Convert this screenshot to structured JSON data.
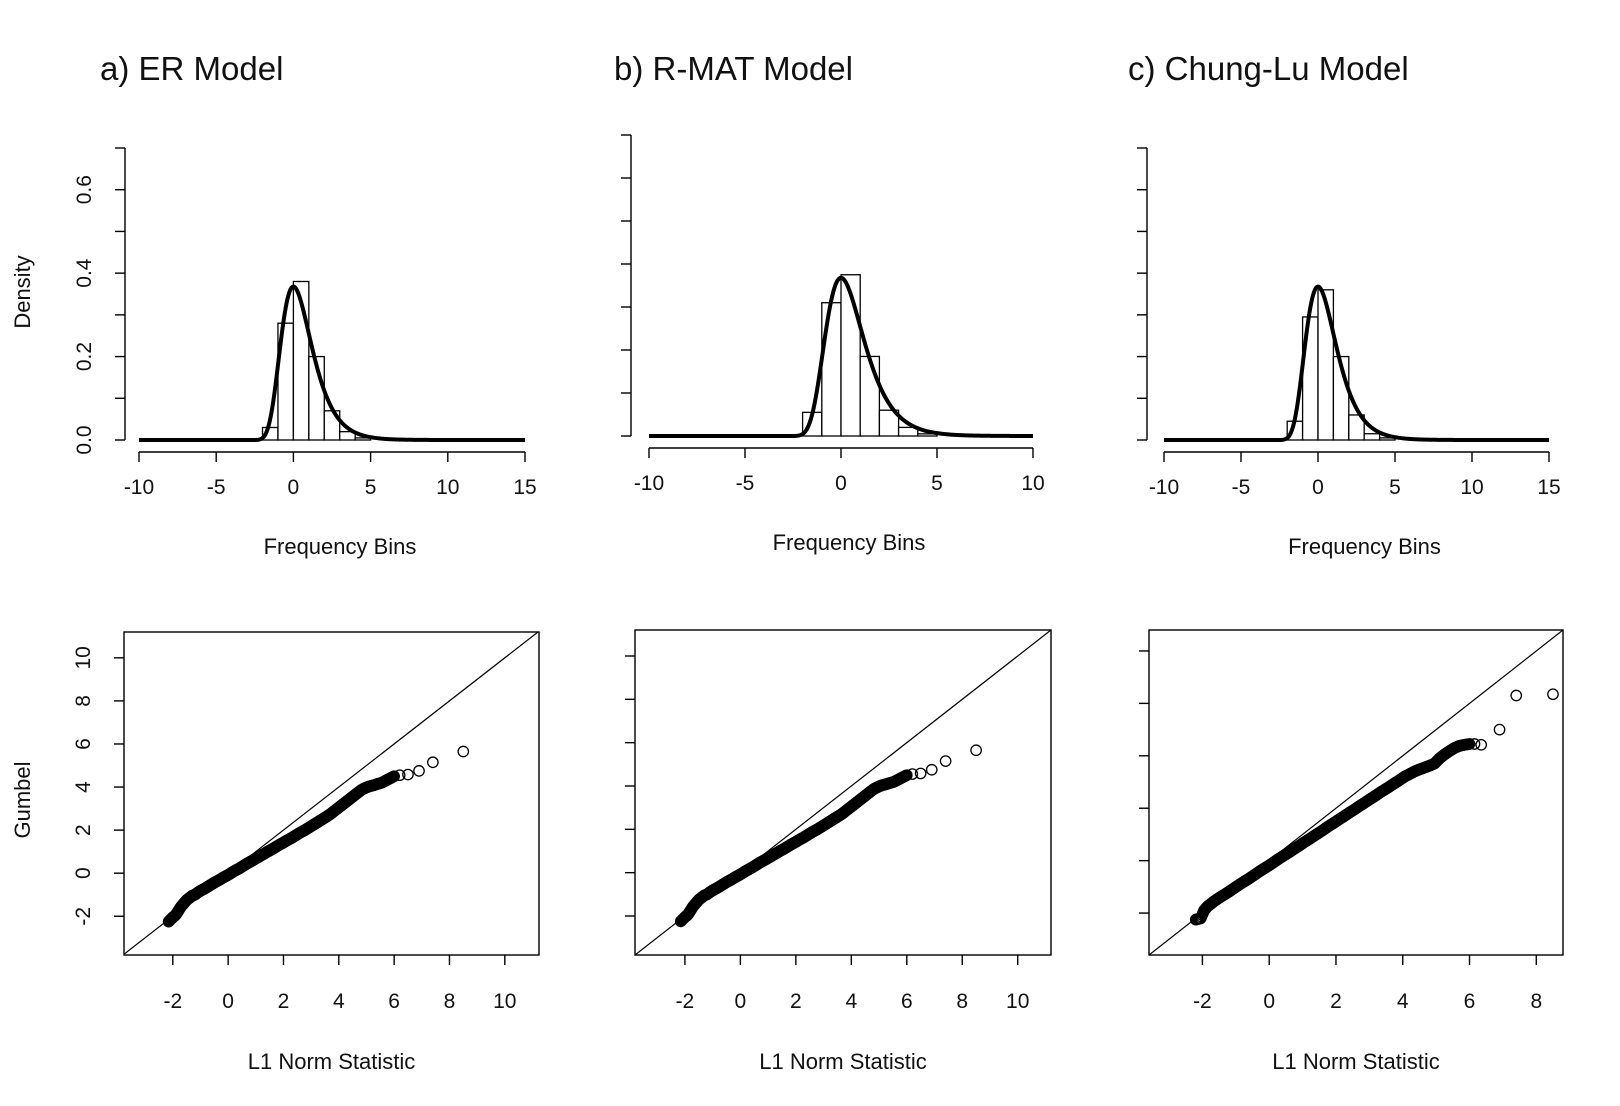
{
  "figure": {
    "density_ylabel": "Density",
    "gumbel_ylabel": "Gumbel"
  },
  "chart_data": [
    {
      "id": "hist-er",
      "type": "bar",
      "panel_title": "a)  ER Model",
      "xlabel": "Frequency Bins",
      "ylabel": "Density",
      "xlim": [
        -10,
        15
      ],
      "ylim": [
        0,
        0.7
      ],
      "x_ticks": [
        -10,
        -5,
        0,
        5,
        10,
        15
      ],
      "y_ticks": [
        0.0,
        0.2,
        0.4,
        0.6
      ],
      "y_tick_labels": [
        "0.0",
        "0.2",
        "0.4",
        "0.6"
      ],
      "bin_width": 1,
      "bins": [
        -2,
        -1,
        0,
        1,
        2,
        3,
        4
      ],
      "values": [
        0.03,
        0.28,
        0.38,
        0.2,
        0.07,
        0.02,
        0.005
      ],
      "curve": {
        "loc": 0,
        "scale": 1,
        "peak": 0.368,
        "lower_cut": -2.4
      },
      "grid": false
    },
    {
      "id": "hist-rmat",
      "type": "bar",
      "panel_title": "b) R-MAT Model",
      "xlabel": "Frequency Bins",
      "ylabel": "",
      "xlim": [
        -10,
        10
      ],
      "ylim": [
        0,
        0.7
      ],
      "x_ticks": [
        -10,
        -5,
        0,
        5,
        10
      ],
      "y_ticks": [
        0.0,
        0.1,
        0.2,
        0.3,
        0.4,
        0.5,
        0.6,
        0.7
      ],
      "y_tick_labels": [],
      "bin_width": 1,
      "bins": [
        -2,
        -1,
        0,
        1,
        2,
        3,
        4
      ],
      "values": [
        0.055,
        0.31,
        0.375,
        0.185,
        0.06,
        0.02,
        0.005
      ],
      "curve": {
        "loc": 0,
        "scale": 1,
        "peak": 0.368,
        "lower_cut": -2.4
      },
      "grid": false
    },
    {
      "id": "hist-chunglu",
      "type": "bar",
      "panel_title": "c) Chung-Lu Model",
      "xlabel": "Frequency Bins",
      "ylabel": "",
      "xlim": [
        -10,
        15
      ],
      "ylim": [
        0,
        0.7
      ],
      "x_ticks": [
        -10,
        -5,
        0,
        5,
        10,
        15
      ],
      "y_ticks": [
        0.0,
        0.1,
        0.2,
        0.3,
        0.4,
        0.5,
        0.6,
        0.7
      ],
      "y_tick_labels": [],
      "bin_width": 1,
      "bins": [
        -2,
        -1,
        0,
        1,
        2,
        3,
        4
      ],
      "values": [
        0.045,
        0.295,
        0.36,
        0.2,
        0.06,
        0.015,
        0.005
      ],
      "curve": {
        "loc": 0,
        "scale": 1,
        "peak": 0.368,
        "lower_cut": -2.4
      },
      "grid": false
    },
    {
      "id": "qq-er",
      "type": "scatter",
      "xlabel": "L1 Norm Statistic",
      "ylabel": "Gumbel",
      "xlim": [
        -3.8,
        11.2
      ],
      "ylim": [
        -3.8,
        11.2
      ],
      "x_ticks": [
        -2,
        0,
        2,
        4,
        6,
        8,
        10
      ],
      "y_ticks": [
        -2,
        0,
        2,
        4,
        6,
        8,
        10
      ],
      "y_tick_labels": [
        "-2",
        "0",
        "2",
        "4",
        "6",
        "8",
        "10"
      ],
      "reference_line": {
        "slope": 1,
        "intercept": 0
      },
      "points": [
        [
          -2.15,
          -2.25
        ],
        [
          -2.0,
          -2.05
        ],
        [
          -1.9,
          -1.95
        ],
        [
          -1.8,
          -1.75
        ],
        [
          -1.7,
          -1.55
        ],
        [
          -1.6,
          -1.4
        ],
        [
          -1.5,
          -1.25
        ],
        [
          -1.4,
          -1.15
        ],
        [
          -1.3,
          -1.05
        ],
        [
          -1.2,
          -1.0
        ],
        [
          -1.1,
          -0.9
        ],
        [
          -1.0,
          -0.82
        ],
        [
          -0.9,
          -0.75
        ],
        [
          -0.8,
          -0.68
        ],
        [
          -0.7,
          -0.6
        ],
        [
          -0.6,
          -0.52
        ],
        [
          -0.5,
          -0.44
        ],
        [
          -0.4,
          -0.37
        ],
        [
          -0.3,
          -0.3
        ],
        [
          -0.2,
          -0.22
        ],
        [
          -0.1,
          -0.15
        ],
        [
          0.0,
          -0.08
        ],
        [
          0.1,
          0.0
        ],
        [
          0.2,
          0.08
        ],
        [
          0.3,
          0.15
        ],
        [
          0.4,
          0.22
        ],
        [
          0.5,
          0.3
        ],
        [
          0.6,
          0.38
        ],
        [
          0.7,
          0.46
        ],
        [
          0.8,
          0.53
        ],
        [
          0.9,
          0.6
        ],
        [
          1.0,
          0.68
        ],
        [
          1.1,
          0.75
        ],
        [
          1.2,
          0.83
        ],
        [
          1.3,
          0.9
        ],
        [
          1.4,
          0.98
        ],
        [
          1.5,
          1.05
        ],
        [
          1.6,
          1.12
        ],
        [
          1.7,
          1.2
        ],
        [
          1.8,
          1.28
        ],
        [
          1.9,
          1.35
        ],
        [
          2.0,
          1.42
        ],
        [
          2.1,
          1.5
        ],
        [
          2.2,
          1.57
        ],
        [
          2.3,
          1.64
        ],
        [
          2.4,
          1.72
        ],
        [
          2.5,
          1.8
        ],
        [
          2.6,
          1.88
        ],
        [
          2.7,
          1.95
        ],
        [
          2.8,
          2.02
        ],
        [
          2.9,
          2.1
        ],
        [
          3.0,
          2.18
        ],
        [
          3.1,
          2.26
        ],
        [
          3.2,
          2.34
        ],
        [
          3.3,
          2.42
        ],
        [
          3.4,
          2.5
        ],
        [
          3.5,
          2.58
        ],
        [
          3.6,
          2.66
        ],
        [
          3.7,
          2.75
        ],
        [
          3.8,
          2.85
        ],
        [
          3.9,
          2.95
        ],
        [
          4.0,
          3.05
        ],
        [
          4.1,
          3.15
        ],
        [
          4.2,
          3.25
        ],
        [
          4.3,
          3.35
        ],
        [
          4.4,
          3.45
        ],
        [
          4.5,
          3.55
        ],
        [
          4.6,
          3.65
        ],
        [
          4.7,
          3.75
        ],
        [
          4.8,
          3.85
        ],
        [
          4.9,
          3.92
        ],
        [
          5.0,
          3.98
        ],
        [
          5.1,
          4.03
        ],
        [
          5.25,
          4.08
        ],
        [
          5.4,
          4.14
        ],
        [
          5.55,
          4.2
        ],
        [
          5.7,
          4.3
        ],
        [
          5.85,
          4.4
        ],
        [
          6.0,
          4.5
        ],
        [
          6.2,
          4.55
        ],
        [
          6.5,
          4.58
        ],
        [
          6.9,
          4.75
        ],
        [
          7.4,
          5.15
        ],
        [
          8.5,
          5.65
        ]
      ],
      "grid": false
    },
    {
      "id": "qq-rmat",
      "type": "scatter",
      "xlabel": "L1 Norm Statistic",
      "ylabel": "",
      "xlim": [
        -3.8,
        11.2
      ],
      "ylim": [
        -3.8,
        11.2
      ],
      "x_ticks": [
        -2,
        0,
        2,
        4,
        6,
        8,
        10
      ],
      "y_ticks": [
        -2,
        0,
        2,
        4,
        6,
        8,
        10
      ],
      "y_tick_labels": [],
      "reference_line": {
        "slope": 1,
        "intercept": 0
      },
      "points": [
        [
          -2.15,
          -2.25
        ],
        [
          -2.0,
          -2.05
        ],
        [
          -1.9,
          -1.95
        ],
        [
          -1.8,
          -1.75
        ],
        [
          -1.7,
          -1.55
        ],
        [
          -1.6,
          -1.4
        ],
        [
          -1.5,
          -1.25
        ],
        [
          -1.4,
          -1.15
        ],
        [
          -1.3,
          -1.05
        ],
        [
          -1.2,
          -1.0
        ],
        [
          -1.1,
          -0.9
        ],
        [
          -1.0,
          -0.82
        ],
        [
          -0.9,
          -0.75
        ],
        [
          -0.8,
          -0.68
        ],
        [
          -0.7,
          -0.6
        ],
        [
          -0.6,
          -0.52
        ],
        [
          -0.5,
          -0.44
        ],
        [
          -0.4,
          -0.37
        ],
        [
          -0.3,
          -0.3
        ],
        [
          -0.2,
          -0.22
        ],
        [
          -0.1,
          -0.15
        ],
        [
          0.0,
          -0.08
        ],
        [
          0.1,
          0.0
        ],
        [
          0.2,
          0.08
        ],
        [
          0.3,
          0.15
        ],
        [
          0.4,
          0.22
        ],
        [
          0.5,
          0.3
        ],
        [
          0.6,
          0.38
        ],
        [
          0.7,
          0.46
        ],
        [
          0.8,
          0.53
        ],
        [
          0.9,
          0.6
        ],
        [
          1.0,
          0.68
        ],
        [
          1.1,
          0.75
        ],
        [
          1.2,
          0.83
        ],
        [
          1.3,
          0.9
        ],
        [
          1.4,
          0.98
        ],
        [
          1.5,
          1.05
        ],
        [
          1.6,
          1.12
        ],
        [
          1.7,
          1.2
        ],
        [
          1.8,
          1.28
        ],
        [
          1.9,
          1.35
        ],
        [
          2.0,
          1.42
        ],
        [
          2.1,
          1.5
        ],
        [
          2.2,
          1.57
        ],
        [
          2.3,
          1.64
        ],
        [
          2.4,
          1.72
        ],
        [
          2.5,
          1.8
        ],
        [
          2.6,
          1.88
        ],
        [
          2.7,
          1.95
        ],
        [
          2.8,
          2.02
        ],
        [
          2.9,
          2.1
        ],
        [
          3.0,
          2.18
        ],
        [
          3.1,
          2.26
        ],
        [
          3.2,
          2.34
        ],
        [
          3.3,
          2.42
        ],
        [
          3.4,
          2.5
        ],
        [
          3.5,
          2.58
        ],
        [
          3.6,
          2.66
        ],
        [
          3.7,
          2.75
        ],
        [
          3.8,
          2.85
        ],
        [
          3.9,
          2.95
        ],
        [
          4.0,
          3.05
        ],
        [
          4.1,
          3.15
        ],
        [
          4.2,
          3.25
        ],
        [
          4.3,
          3.35
        ],
        [
          4.4,
          3.45
        ],
        [
          4.5,
          3.55
        ],
        [
          4.6,
          3.65
        ],
        [
          4.7,
          3.75
        ],
        [
          4.8,
          3.85
        ],
        [
          4.9,
          3.92
        ],
        [
          5.0,
          3.98
        ],
        [
          5.1,
          4.03
        ],
        [
          5.25,
          4.08
        ],
        [
          5.4,
          4.14
        ],
        [
          5.55,
          4.2
        ],
        [
          5.7,
          4.3
        ],
        [
          5.85,
          4.4
        ],
        [
          6.0,
          4.5
        ],
        [
          6.2,
          4.55
        ],
        [
          6.5,
          4.58
        ],
        [
          6.9,
          4.75
        ],
        [
          7.4,
          5.15
        ],
        [
          8.5,
          5.65
        ]
      ],
      "grid": false
    },
    {
      "id": "qq-chunglu",
      "type": "scatter",
      "xlabel": "L1 Norm Statistic",
      "ylabel": "",
      "xlim": [
        -3.6,
        8.8
      ],
      "ylim": [
        -3.6,
        8.8
      ],
      "x_ticks": [
        -2,
        0,
        2,
        4,
        6,
        8
      ],
      "y_ticks": [
        -2,
        0,
        2,
        4,
        6,
        8
      ],
      "y_tick_labels": [],
      "reference_line": {
        "slope": 1,
        "intercept": 0
      },
      "points": [
        [
          -2.2,
          -2.25
        ],
        [
          -2.05,
          -2.2
        ],
        [
          -1.95,
          -1.9
        ],
        [
          -1.85,
          -1.75
        ],
        [
          -1.75,
          -1.65
        ],
        [
          -1.65,
          -1.55
        ],
        [
          -1.5,
          -1.42
        ],
        [
          -1.35,
          -1.3
        ],
        [
          -1.2,
          -1.18
        ],
        [
          -1.05,
          -1.05
        ],
        [
          -0.9,
          -0.92
        ],
        [
          -0.75,
          -0.8
        ],
        [
          -0.6,
          -0.68
        ],
        [
          -0.45,
          -0.55
        ],
        [
          -0.3,
          -0.42
        ],
        [
          -0.15,
          -0.3
        ],
        [
          0.0,
          -0.18
        ],
        [
          0.15,
          -0.05
        ],
        [
          0.3,
          0.08
        ],
        [
          0.45,
          0.2
        ],
        [
          0.6,
          0.32
        ],
        [
          0.75,
          0.45
        ],
        [
          0.9,
          0.57
        ],
        [
          1.05,
          0.7
        ],
        [
          1.2,
          0.82
        ],
        [
          1.35,
          0.95
        ],
        [
          1.5,
          1.07
        ],
        [
          1.65,
          1.2
        ],
        [
          1.8,
          1.33
        ],
        [
          1.95,
          1.45
        ],
        [
          2.1,
          1.58
        ],
        [
          2.25,
          1.7
        ],
        [
          2.4,
          1.83
        ],
        [
          2.55,
          1.95
        ],
        [
          2.7,
          2.08
        ],
        [
          2.85,
          2.2
        ],
        [
          3.0,
          2.33
        ],
        [
          3.15,
          2.45
        ],
        [
          3.3,
          2.58
        ],
        [
          3.45,
          2.7
        ],
        [
          3.6,
          2.82
        ],
        [
          3.75,
          2.95
        ],
        [
          3.9,
          3.07
        ],
        [
          4.05,
          3.2
        ],
        [
          4.2,
          3.3
        ],
        [
          4.35,
          3.4
        ],
        [
          4.5,
          3.48
        ],
        [
          4.65,
          3.55
        ],
        [
          4.8,
          3.62
        ],
        [
          4.95,
          3.7
        ],
        [
          5.1,
          3.9
        ],
        [
          5.25,
          4.05
        ],
        [
          5.4,
          4.18
        ],
        [
          5.55,
          4.3
        ],
        [
          5.7,
          4.38
        ],
        [
          5.85,
          4.42
        ],
        [
          6.0,
          4.45
        ],
        [
          6.15,
          4.45
        ],
        [
          6.35,
          4.42
        ],
        [
          6.9,
          5.0
        ],
        [
          7.4,
          6.3
        ],
        [
          8.5,
          6.35
        ]
      ],
      "grid": false
    }
  ]
}
